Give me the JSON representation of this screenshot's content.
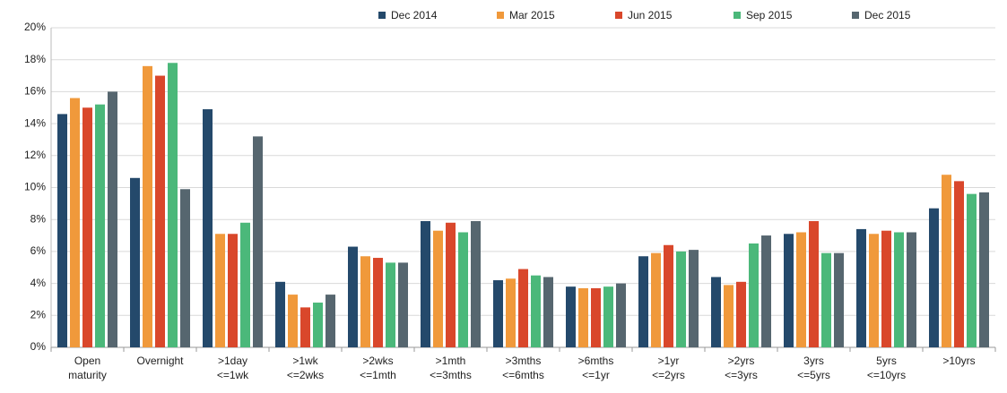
{
  "chart_data": {
    "type": "bar",
    "categories": [
      [
        "Open",
        "maturity"
      ],
      [
        "Overnight"
      ],
      [
        ">1day",
        "<=1wk"
      ],
      [
        ">1wk",
        "<=2wks"
      ],
      [
        ">2wks",
        "<=1mth"
      ],
      [
        ">1mth",
        "<=3mths"
      ],
      [
        ">3mths",
        "<=6mths"
      ],
      [
        ">6mths",
        "<=1yr"
      ],
      [
        ">1yr",
        "<=2yrs"
      ],
      [
        ">2yrs",
        "<=3yrs"
      ],
      [
        "3yrs",
        "<=5yrs"
      ],
      [
        "5yrs",
        "<=10yrs"
      ],
      [
        ">10yrs"
      ]
    ],
    "series": [
      {
        "name": "Dec 2014",
        "color": "#24496b",
        "values": [
          14.6,
          10.6,
          14.9,
          4.1,
          6.3,
          7.9,
          4.2,
          3.8,
          5.7,
          4.4,
          7.1,
          7.4,
          8.7
        ]
      },
      {
        "name": "Mar 2015",
        "color": "#f0993b",
        "values": [
          15.6,
          17.6,
          7.1,
          3.3,
          5.7,
          7.3,
          4.3,
          3.7,
          5.9,
          3.9,
          7.2,
          7.1,
          10.8
        ]
      },
      {
        "name": "Jun 2015",
        "color": "#d9472b",
        "values": [
          15.0,
          17.0,
          7.1,
          2.5,
          5.6,
          7.8,
          4.9,
          3.7,
          6.4,
          4.1,
          7.9,
          7.3,
          10.4
        ]
      },
      {
        "name": "Sep 2015",
        "color": "#4bb87a",
        "values": [
          15.2,
          17.8,
          7.8,
          2.8,
          5.3,
          7.2,
          4.5,
          3.8,
          6.0,
          6.5,
          5.9,
          7.2,
          9.6
        ]
      },
      {
        "name": "Dec 2015",
        "color": "#56666f",
        "values": [
          16.0,
          9.9,
          13.2,
          3.3,
          5.3,
          7.9,
          4.4,
          4.0,
          6.1,
          7.0,
          5.9,
          7.2,
          9.7
        ]
      }
    ],
    "ylim": [
      0,
      20
    ],
    "yticks": [
      {
        "value": 0,
        "label": "0%"
      },
      {
        "value": 2,
        "label": "2%"
      },
      {
        "value": 4,
        "label": "4%"
      },
      {
        "value": 6,
        "label": "6%"
      },
      {
        "value": 8,
        "label": "8%"
      },
      {
        "value": 10,
        "label": "10%"
      },
      {
        "value": 12,
        "label": "12%"
      },
      {
        "value": 14,
        "label": "14%"
      },
      {
        "value": 16,
        "label": "16%"
      },
      {
        "value": 18,
        "label": "18%"
      },
      {
        "value": 20,
        "label": "20%"
      }
    ],
    "grid": true,
    "legend": "top-right"
  }
}
